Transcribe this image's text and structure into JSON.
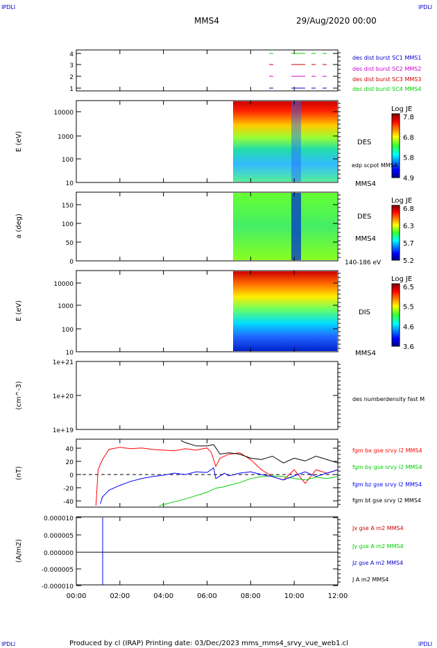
{
  "corner_label": "IPDLI",
  "header": {
    "spacecraft": "MMS4",
    "datetime": "29/Aug/2020 00:00"
  },
  "footer": "Produced by cl (IRAP)   Printing date: 03/Dec/2023   mms_mms4_srvy_vue_web1.cl",
  "colors": {
    "red": "#ff0000",
    "green": "#00cc00",
    "blue": "#0000ff",
    "magenta": "#cc00cc",
    "black": "#000000"
  },
  "x_ticks": [
    "00:00",
    "02:00",
    "04:00",
    "06:00",
    "08:00",
    "10:00",
    "12:00"
  ],
  "chart_data": [
    {
      "type": "line",
      "y_ticks": [
        "4",
        "3",
        "2",
        "1"
      ],
      "legend": [
        {
          "label": "des dist burst SC1 MMS1",
          "color": "#0000cc"
        },
        {
          "label": "des dist burst SC2 MMS2",
          "color": "#cc00cc"
        },
        {
          "label": "des dist burst SC3 MMS3",
          "color": "#cc0000"
        },
        {
          "label": "des dist burst SC4 MMS4",
          "color": "#00cc00"
        }
      ]
    },
    {
      "type": "heatmap",
      "ylabel": "E (eV)",
      "y_ticks": [
        "10000",
        "1000",
        "100",
        "10"
      ],
      "right_labels": [
        "DES",
        "edp scpot MMS4",
        "MMS4"
      ],
      "colorbar": {
        "title": "Log JE",
        "ticks": [
          "7.8",
          "6.8",
          "5.8",
          "4.9"
        ]
      }
    },
    {
      "type": "heatmap",
      "ylabel": "a (deg)",
      "y_ticks": [
        "150",
        "100",
        "50",
        "0"
      ],
      "right_labels": [
        "DES",
        "MMS4",
        "140-186 eV"
      ],
      "colorbar": {
        "title": "Log JE",
        "ticks": [
          "6.8",
          "6.3",
          "5.7",
          "5.2"
        ]
      }
    },
    {
      "type": "heatmap",
      "ylabel": "E (eV)",
      "y_ticks": [
        "10000",
        "1000",
        "100",
        "10"
      ],
      "right_labels": [
        "DIS",
        "MMS4"
      ],
      "colorbar": {
        "title": "Log JE",
        "ticks": [
          "6.5",
          "5.5",
          "4.6",
          "3.6"
        ]
      }
    },
    {
      "type": "line",
      "ylabel": "(cm^-3)",
      "y_ticks": [
        "1e+21",
        "1e+20",
        "1e+19"
      ],
      "right_labels": [
        "des numberdensity fast M"
      ]
    },
    {
      "type": "line",
      "ylabel": "(nT)",
      "y_ticks": [
        "40",
        "20",
        "0",
        "-20",
        "-40"
      ],
      "ylim": [
        -50,
        50
      ],
      "legend": [
        {
          "label": "fgm bx gse srvy l2 MMS4",
          "color": "#ff0000"
        },
        {
          "label": "fgm by gse srvy l2 MMS4",
          "color": "#00cc00"
        },
        {
          "label": "fgm bz gse srvy l2 MMS4",
          "color": "#0000ff"
        },
        {
          "label": "fgm bt gse srvy l2 MMS4",
          "color": "#000000"
        }
      ],
      "series": [
        {
          "color": "#ff0000",
          "x": [
            0.9,
            1.0,
            1.2,
            1.5,
            2.0,
            2.5,
            3.0,
            3.5,
            4.0,
            4.5,
            5.0,
            5.5,
            6.0,
            6.2,
            6.4,
            6.6,
            7.0,
            7.5,
            8.0,
            8.5,
            9.0,
            9.5,
            10.0,
            10.5,
            11.0,
            11.5,
            12.0
          ],
          "y": [
            -48,
            5,
            20,
            35,
            38,
            36,
            37,
            35,
            34,
            33,
            36,
            34,
            37,
            30,
            10,
            22,
            28,
            30,
            20,
            5,
            -5,
            -10,
            5,
            -15,
            5,
            0,
            5
          ]
        },
        {
          "color": "#00cc00",
          "x": [
            3.8,
            4.5,
            5.0,
            5.5,
            6.0,
            6.4,
            6.8,
            7.0,
            7.5,
            8.0,
            8.5,
            9.0,
            9.5,
            10.0,
            10.5,
            11.0,
            11.5,
            12.0
          ],
          "y": [
            -48,
            -42,
            -38,
            -33,
            -28,
            -22,
            -20,
            -18,
            -14,
            -8,
            -5,
            -4,
            -5,
            -8,
            -10,
            -6,
            -8,
            -5
          ]
        },
        {
          "color": "#0000ff",
          "x": [
            1.1,
            1.2,
            1.5,
            2.0,
            2.5,
            3.0,
            3.5,
            4.0,
            4.5,
            5.0,
            5.5,
            6.0,
            6.3,
            6.4,
            6.8,
            7.0,
            7.5,
            8.0,
            8.5,
            9.0,
            9.5,
            10.0,
            10.5,
            11.0,
            11.5,
            12.0
          ],
          "y": [
            -45,
            -35,
            -25,
            -18,
            -12,
            -8,
            -5,
            -3,
            0,
            -2,
            2,
            1,
            8,
            -8,
            0,
            -4,
            0,
            2,
            -2,
            -5,
            -10,
            -4,
            2,
            -5,
            0,
            5
          ]
        },
        {
          "color": "#000000",
          "x": [
            4.8,
            5.0,
            5.5,
            6.0,
            6.3,
            6.6,
            7.0,
            7.5,
            8.0,
            8.5,
            9.0,
            9.5,
            10.0,
            10.5,
            11.0,
            11.5,
            12.0
          ],
          "y": [
            48,
            45,
            40,
            40,
            42,
            28,
            30,
            28,
            22,
            20,
            25,
            15,
            22,
            18,
            25,
            20,
            15
          ]
        }
      ]
    },
    {
      "type": "line",
      "ylabel": "(A/m2)",
      "y_ticks": [
        "0.000010",
        "0.000005",
        "0.000000",
        "-0.000005",
        "-0.000010"
      ],
      "ylim": [
        -1e-05,
        1e-05
      ],
      "legend": [
        {
          "label": "Jx gse A m2 MMS4",
          "color": "#cc0000"
        },
        {
          "label": "Jy gse A m2 MMS4",
          "color": "#00cc00"
        },
        {
          "label": "Jz gse A m2 MMS4",
          "color": "#0000cc"
        },
        {
          "label": "J A m2 MMS4",
          "color": "#000000"
        }
      ]
    }
  ]
}
